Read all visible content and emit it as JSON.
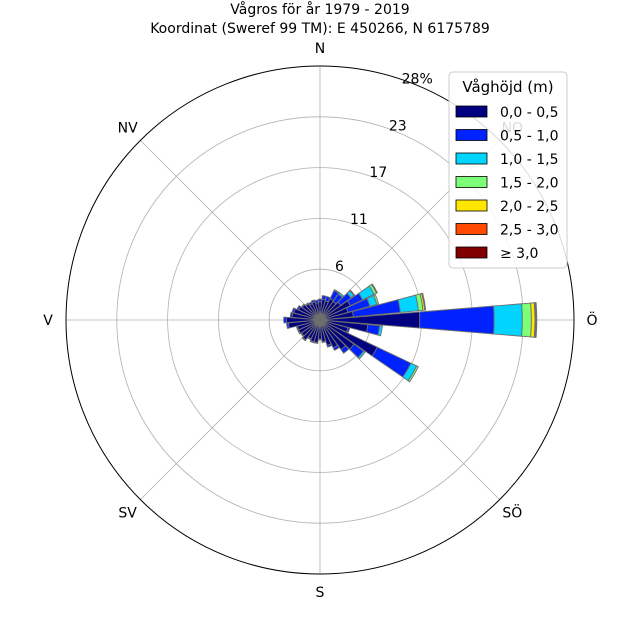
{
  "chart_data": {
    "type": "windrose",
    "title": "Vågros för år 1979 - 2019",
    "subtitle": "Koordinat (Sweref 99 TM): E 450266, N 6175789",
    "directions": [
      "N",
      "NO",
      "Ö",
      "SÖ",
      "S",
      "SV",
      "V",
      "NV"
    ],
    "radial_ticks": [
      "6",
      "11",
      "17",
      "23",
      "28%"
    ],
    "radial_tick_values": [
      5.6,
      11.2,
      16.8,
      22.4,
      28
    ],
    "rmax": 28,
    "grid": true,
    "legend": {
      "title": "Våghöjd (m)",
      "placement": "top-right",
      "entries": [
        {
          "label": "0,0 - 0,5",
          "color": "#000080"
        },
        {
          "label": "0,5 - 1,0",
          "color": "#0022ff"
        },
        {
          "label": "1,0 - 1,5",
          "color": "#00d4ff"
        },
        {
          "label": "1,5 - 2,0",
          "color": "#7cff79"
        },
        {
          "label": "2,0 - 2,5",
          "color": "#ffe600"
        },
        {
          "label": "2,5 - 3,0",
          "color": "#ff4a00"
        },
        {
          "label": "≥ 3,0",
          "color": "#800000"
        }
      ]
    },
    "sectors": [
      {
        "angle": 0,
        "values": [
          2.0,
          0.3,
          0,
          0,
          0,
          0,
          0
        ]
      },
      {
        "angle": 10,
        "values": [
          2.3,
          0.4,
          0,
          0,
          0,
          0,
          0
        ]
      },
      {
        "angle": 20,
        "values": [
          2.2,
          0.5,
          0,
          0,
          0,
          0,
          0
        ]
      },
      {
        "angle": 30,
        "values": [
          2.6,
          1.0,
          0.1,
          0,
          0,
          0,
          0
        ]
      },
      {
        "angle": 40,
        "values": [
          2.5,
          1.0,
          0.2,
          0,
          0,
          0,
          0
        ]
      },
      {
        "angle": 50,
        "values": [
          2.8,
          1.4,
          0.4,
          0.1,
          0,
          0,
          0
        ]
      },
      {
        "angle": 60,
        "values": [
          3.7,
          1.5,
          1.4,
          0.3,
          0.1,
          0,
          0
        ]
      },
      {
        "angle": 70,
        "values": [
          3.2,
          2.5,
          0.8,
          0.2,
          0,
          0,
          0
        ]
      },
      {
        "angle": 80,
        "values": [
          3.7,
          5.2,
          2.0,
          0.5,
          0.2,
          0.1,
          0
        ]
      },
      {
        "angle": 90,
        "values": [
          11.0,
          8.2,
          3.1,
          1.0,
          0.4,
          0.1,
          0.1
        ]
      },
      {
        "angle": 100,
        "values": [
          5.3,
          1.3,
          0.3,
          0,
          0,
          0,
          0
        ]
      },
      {
        "angle": 110,
        "values": [
          3.2,
          0.2,
          0,
          0,
          0,
          0,
          0
        ]
      },
      {
        "angle": 120,
        "values": [
          7.0,
          4.1,
          0.7,
          0.2,
          0,
          0,
          0
        ]
      },
      {
        "angle": 130,
        "values": [
          4.6,
          1.3,
          0.2,
          0,
          0,
          0,
          0
        ]
      },
      {
        "angle": 140,
        "values": [
          4.0,
          0.5,
          0,
          0,
          0,
          0,
          0
        ]
      },
      {
        "angle": 150,
        "values": [
          3.4,
          0.3,
          0,
          0,
          0,
          0,
          0
        ]
      },
      {
        "angle": 160,
        "values": [
          2.9,
          0.2,
          0,
          0,
          0,
          0,
          0
        ]
      },
      {
        "angle": 170,
        "values": [
          2.4,
          0.1,
          0,
          0,
          0,
          0,
          0
        ]
      },
      {
        "angle": 180,
        "values": [
          2.1,
          0.1,
          0,
          0,
          0,
          0,
          0
        ]
      },
      {
        "angle": 190,
        "values": [
          2.5,
          0.1,
          0,
          0,
          0,
          0,
          0
        ]
      },
      {
        "angle": 200,
        "values": [
          2.5,
          0.1,
          0,
          0,
          0,
          0,
          0
        ]
      },
      {
        "angle": 210,
        "values": [
          2.3,
          0.1,
          0,
          0,
          0,
          0,
          0
        ]
      },
      {
        "angle": 220,
        "values": [
          2.7,
          0.1,
          0,
          0,
          0,
          0,
          0
        ]
      },
      {
        "angle": 230,
        "values": [
          2.5,
          0.1,
          0,
          0,
          0,
          0,
          0
        ]
      },
      {
        "angle": 240,
        "values": [
          2.6,
          0.1,
          0,
          0,
          0,
          0,
          0
        ]
      },
      {
        "angle": 250,
        "values": [
          2.6,
          0.1,
          0,
          0,
          0,
          0,
          0
        ]
      },
      {
        "angle": 260,
        "values": [
          3.5,
          0.2,
          0,
          0,
          0,
          0,
          0
        ]
      },
      {
        "angle": 270,
        "values": [
          3.7,
          0.3,
          0,
          0,
          0,
          0,
          0
        ]
      },
      {
        "angle": 280,
        "values": [
          3.1,
          0.2,
          0,
          0,
          0,
          0,
          0
        ]
      },
      {
        "angle": 290,
        "values": [
          3.0,
          0.2,
          0,
          0,
          0,
          0,
          0
        ]
      },
      {
        "angle": 300,
        "values": [
          2.6,
          0.2,
          0,
          0,
          0,
          0,
          0
        ]
      },
      {
        "angle": 310,
        "values": [
          2.4,
          0.1,
          0,
          0,
          0,
          0,
          0
        ]
      },
      {
        "angle": 320,
        "values": [
          2.2,
          0.1,
          0,
          0,
          0,
          0,
          0
        ]
      },
      {
        "angle": 330,
        "values": [
          2.0,
          0.2,
          0,
          0,
          0,
          0,
          0
        ]
      },
      {
        "angle": 340,
        "values": [
          2.1,
          0.2,
          0,
          0,
          0,
          0,
          0
        ]
      },
      {
        "angle": 350,
        "values": [
          1.9,
          0.3,
          0,
          0,
          0,
          0,
          0
        ]
      }
    ]
  }
}
